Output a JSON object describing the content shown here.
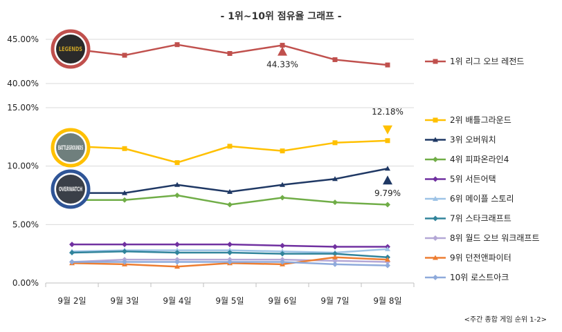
{
  "chart_data": {
    "type": "line",
    "title": "- 1위~10위 점유율 그래프 -",
    "categories": [
      "9월 2일",
      "9월 3일",
      "9월 4일",
      "9월 5일",
      "9월 6일",
      "9월 7일",
      "9월 8일"
    ],
    "top_panel": {
      "ylim": [
        40,
        45
      ],
      "yticks": [
        "45.00%",
        "40.00%"
      ],
      "series": [
        {
          "name": "1위 리그 오브 레전드",
          "color": "#c0504d",
          "values": [
            43.9,
            43.2,
            44.4,
            43.4,
            44.33,
            42.7,
            42.1
          ]
        }
      ]
    },
    "bottom_panel": {
      "ylim": [
        0,
        15
      ],
      "yticks": [
        "15.00%",
        "10.00%",
        "5.00%",
        "0.00%"
      ],
      "series": [
        {
          "name": "2위 배틀그라운드",
          "color": "#ffc000",
          "values": [
            11.7,
            11.5,
            10.3,
            11.7,
            11.3,
            12.0,
            12.18
          ]
        },
        {
          "name": "3위 오버워치",
          "color": "#1f3864",
          "values": [
            7.7,
            7.7,
            8.4,
            7.8,
            8.4,
            8.9,
            9.79
          ]
        },
        {
          "name": "4위 피파온라인4",
          "color": "#70ad47",
          "values": [
            7.1,
            7.1,
            7.5,
            6.7,
            7.3,
            6.9,
            6.7
          ]
        },
        {
          "name": "5위 서든어택",
          "color": "#7030a0",
          "values": [
            3.3,
            3.3,
            3.3,
            3.3,
            3.2,
            3.1,
            3.1
          ]
        },
        {
          "name": "6위 메이플 스토리",
          "color": "#9dc3e6",
          "values": [
            2.7,
            2.8,
            2.8,
            2.8,
            2.7,
            2.6,
            2.9
          ]
        },
        {
          "name": "7위 스타크래프트",
          "color": "#31849b",
          "values": [
            2.6,
            2.7,
            2.6,
            2.6,
            2.5,
            2.5,
            2.2
          ]
        },
        {
          "name": "8위 월드 오브 워크래프트",
          "color": "#b4a7d6",
          "values": [
            1.8,
            2.0,
            2.0,
            2.0,
            2.0,
            1.9,
            1.8
          ]
        },
        {
          "name": "9위 던전앤파이터",
          "color": "#ed7d31",
          "values": [
            1.7,
            1.6,
            1.4,
            1.7,
            1.6,
            2.2,
            2.0
          ]
        },
        {
          "name": "10위 로스트아크",
          "color": "#8eaadb",
          "values": [
            1.8,
            1.8,
            1.8,
            1.8,
            1.8,
            1.6,
            1.5
          ]
        }
      ]
    },
    "annotations": [
      {
        "text": "44.33%",
        "series": "1위 리그 오브 레전드",
        "index": 4,
        "marker": "up-triangle",
        "color": "#c0504d"
      },
      {
        "text": "12.18%",
        "series": "2위 배틀그라운드",
        "index": 6,
        "marker": "down-triangle",
        "color": "#ffc000"
      },
      {
        "text": "9.79%",
        "series": "3위 오버워치",
        "index": 6,
        "marker": "up-triangle",
        "color": "#1f3864"
      }
    ],
    "logos": [
      {
        "series": "1위 리그 오브 레전드",
        "text": "LEGENDS",
        "ring": "#c0504d"
      },
      {
        "series": "2위 배틀그라운드",
        "text": "BATTLEGROUNDS",
        "ring": "#ffc000"
      },
      {
        "series": "3위 오버워치",
        "text": "OVERWATCH",
        "ring": "#2f5597"
      }
    ],
    "source_note": "<주간 종합 게임 순위 1-2>"
  }
}
